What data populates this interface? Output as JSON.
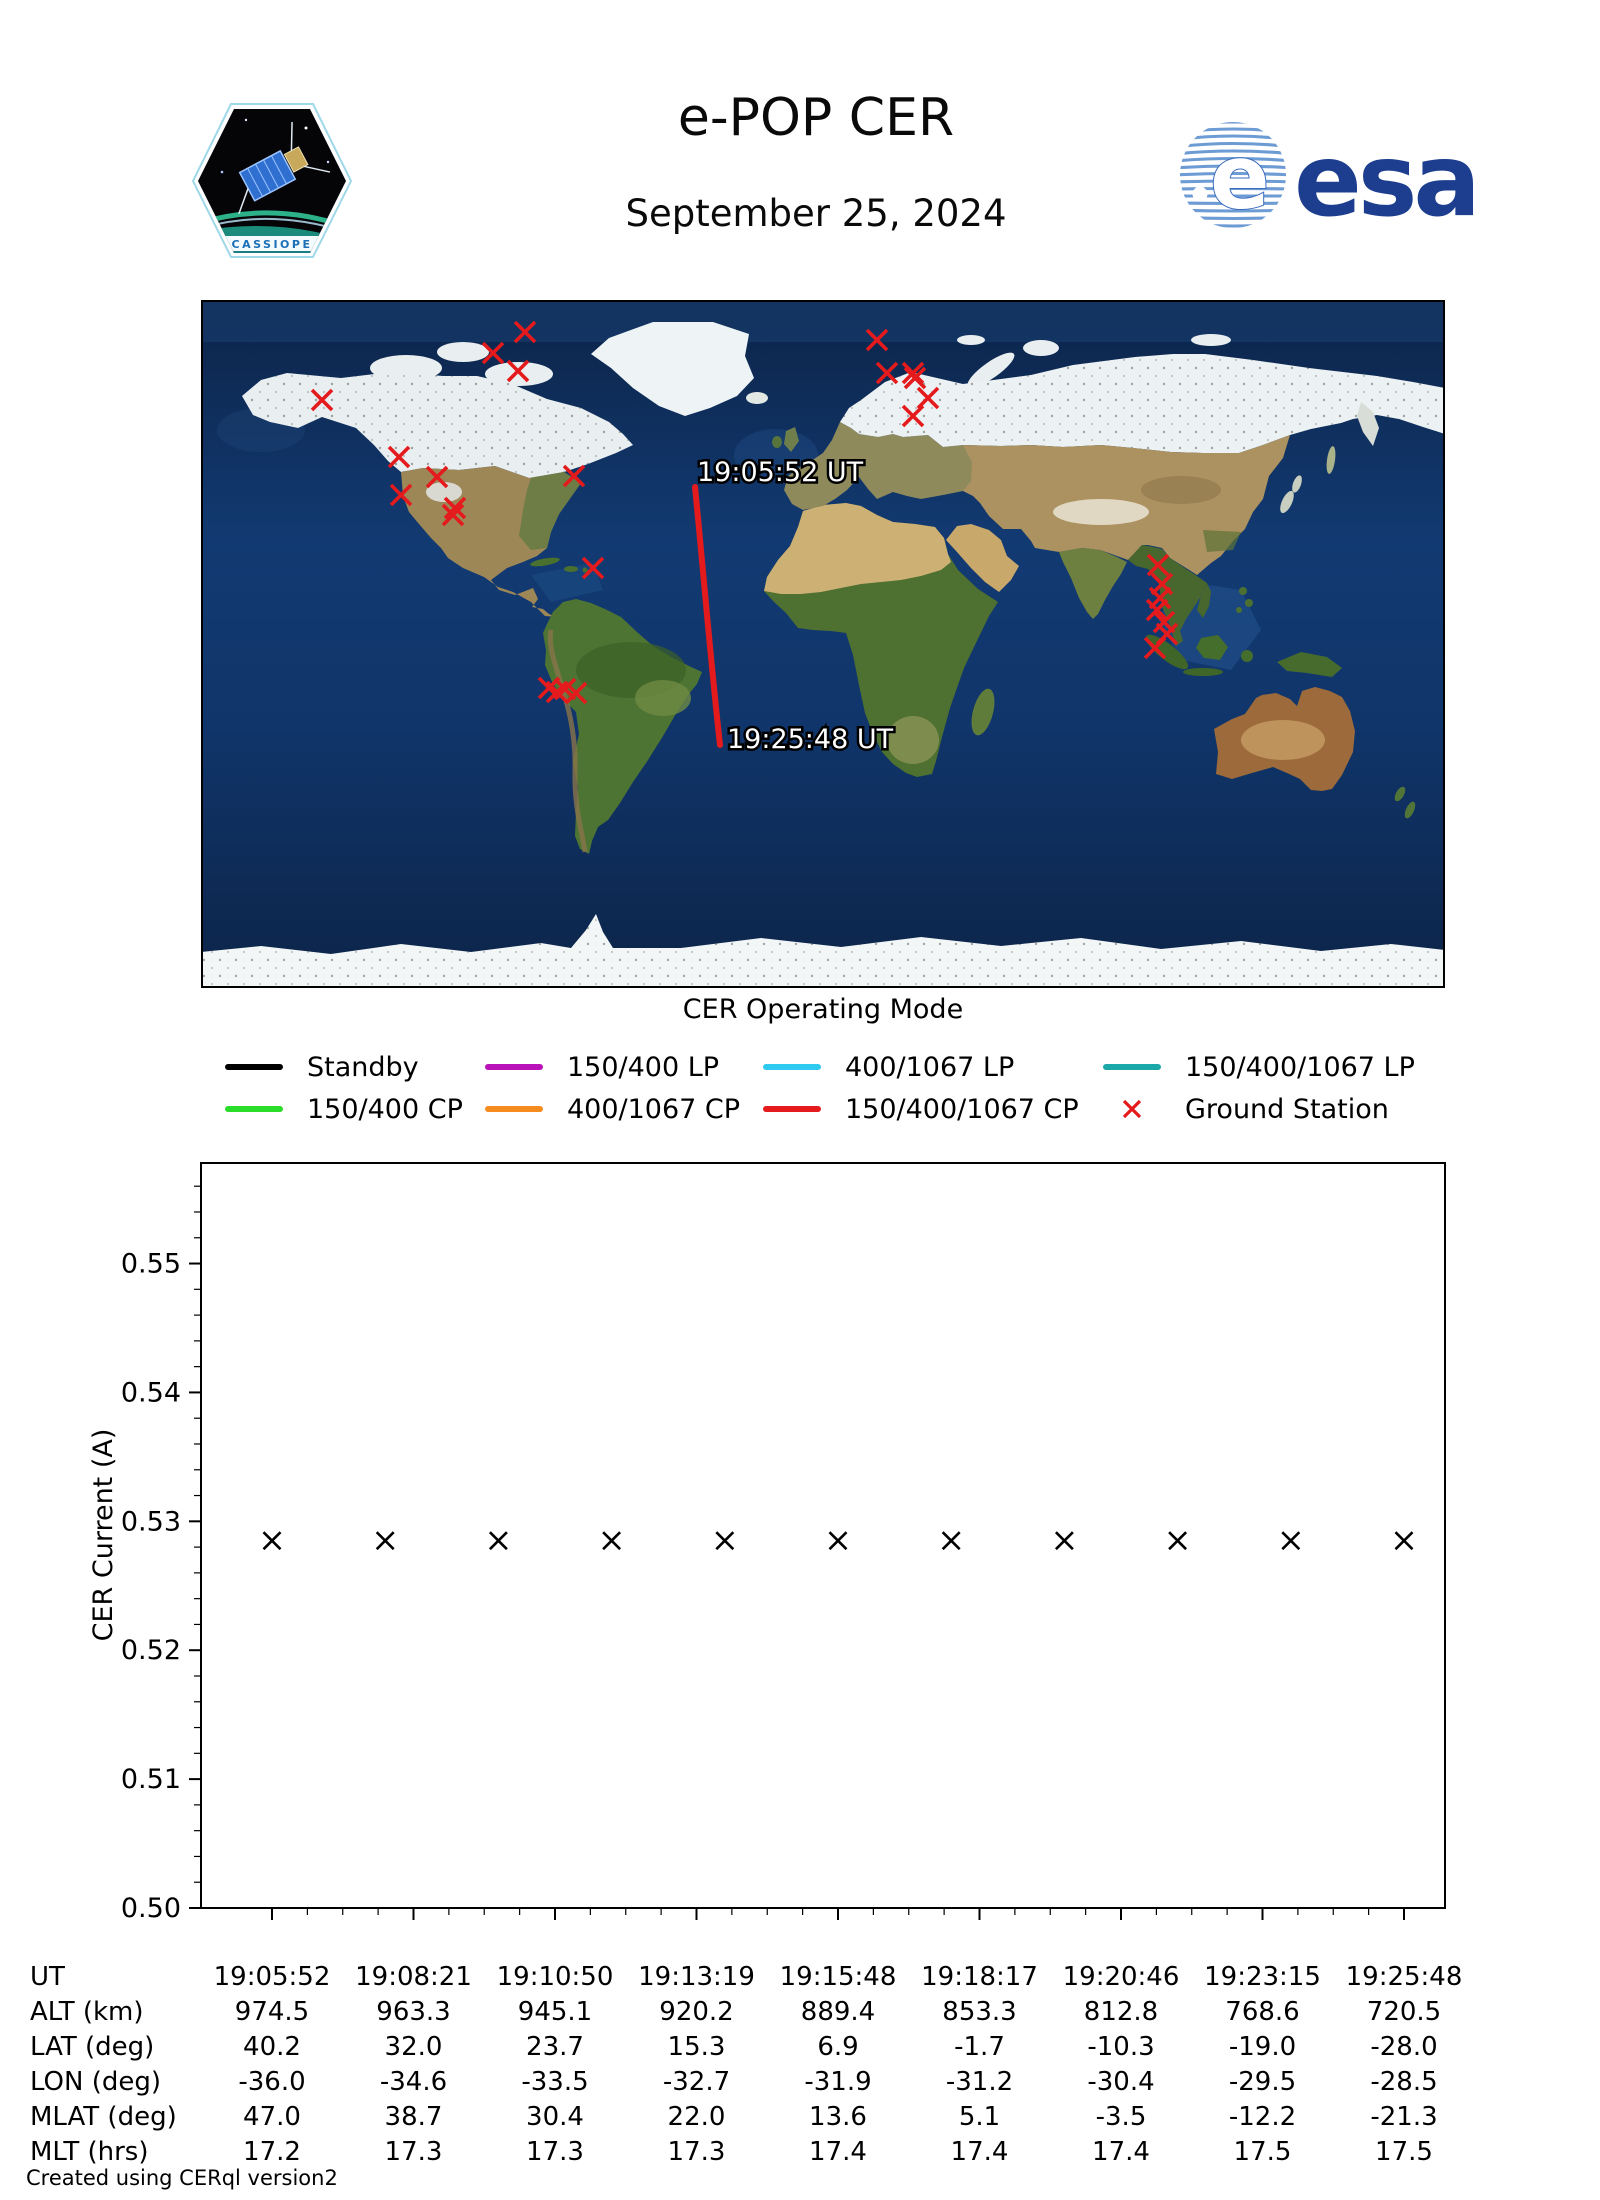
{
  "header": {
    "title": "e-POP CER",
    "subtitle": "September 25, 2024",
    "patch_text": "CASSIOPE",
    "esa_text": "esa"
  },
  "map": {
    "track": {
      "label_start": "19:05:52 UT",
      "label_end": "19:25:48 UT",
      "color": "#e41a1c",
      "start": [
        494,
        187
      ],
      "end": [
        519,
        445
      ]
    },
    "ground_station_color": "#e41a1c",
    "ground_stations": [
      [
        324,
        32
      ],
      [
        292,
        53
      ],
      [
        317,
        71
      ],
      [
        676,
        40
      ],
      [
        686,
        73
      ],
      [
        712,
        73
      ],
      [
        714,
        78
      ],
      [
        727,
        98
      ],
      [
        712,
        116
      ],
      [
        121,
        100
      ],
      [
        198,
        157
      ],
      [
        236,
        177
      ],
      [
        200,
        195
      ],
      [
        254,
        208
      ],
      [
        252,
        215
      ],
      [
        373,
        176
      ],
      [
        392,
        268
      ],
      [
        348,
        388
      ],
      [
        356,
        392
      ],
      [
        364,
        389
      ],
      [
        375,
        393
      ],
      [
        957,
        265
      ],
      [
        961,
        284
      ],
      [
        959,
        298
      ],
      [
        956,
        310
      ],
      [
        963,
        322
      ],
      [
        966,
        334
      ],
      [
        954,
        348
      ]
    ]
  },
  "legend": {
    "title": "CER Operating Mode",
    "rows": [
      [
        {
          "label": "Standby",
          "color": "#000000",
          "type": "line"
        },
        {
          "label": "150/400 LP",
          "color": "#b812b8",
          "type": "line"
        },
        {
          "label": "400/1067 LP",
          "color": "#30c9f0",
          "type": "line"
        },
        {
          "label": "150/400/1067 LP",
          "color": "#1ba8a8",
          "type": "line"
        }
      ],
      [
        {
          "label": "150/400 CP",
          "color": "#2bdd2b",
          "type": "line"
        },
        {
          "label": "400/1067 CP",
          "color": "#f68b1f",
          "type": "line"
        },
        {
          "label": "150/400/1067 CP",
          "color": "#e41a1c",
          "type": "line"
        },
        {
          "label": "Ground Station",
          "color": "#e41a1c",
          "type": "x"
        }
      ]
    ]
  },
  "chart_data": {
    "type": "scatter",
    "marker": "x",
    "marker_color": "#000000",
    "ylabel": "CER Current (A)",
    "ylim": [
      0.5,
      0.5578
    ],
    "yticks": [
      0.5,
      0.51,
      0.52,
      0.53,
      0.54,
      0.55
    ],
    "ytick_minor_step": 0.002,
    "xtick_minor_per_major": 4,
    "x_tick_labels": [
      "19:05:52",
      "19:08:21",
      "19:10:50",
      "19:13:19",
      "19:15:48",
      "19:18:17",
      "19:20:46",
      "19:23:15",
      "19:25:48"
    ],
    "series": [
      {
        "name": "CER current",
        "values": [
          0.5285,
          0.5285,
          0.5285,
          0.5285,
          0.5285,
          0.5285,
          0.5285,
          0.5285,
          0.5285,
          0.5285,
          0.5285
        ]
      }
    ],
    "grid": false,
    "legend_position": "none"
  },
  "table": {
    "rows": [
      {
        "label": "UT",
        "values": [
          "19:05:52",
          "19:08:21",
          "19:10:50",
          "19:13:19",
          "19:15:48",
          "19:18:17",
          "19:20:46",
          "19:23:15",
          "19:25:48"
        ]
      },
      {
        "label": "ALT (km)",
        "values": [
          "974.5",
          "963.3",
          "945.1",
          "920.2",
          "889.4",
          "853.3",
          "812.8",
          "768.6",
          "720.5"
        ]
      },
      {
        "label": "LAT (deg)",
        "values": [
          "40.2",
          "32.0",
          "23.7",
          "15.3",
          "6.9",
          "-1.7",
          "-10.3",
          "-19.0",
          "-28.0"
        ]
      },
      {
        "label": "LON (deg)",
        "values": [
          "-36.0",
          "-34.6",
          "-33.5",
          "-32.7",
          "-31.9",
          "-31.2",
          "-30.4",
          "-29.5",
          "-28.5"
        ]
      },
      {
        "label": "MLAT (deg)",
        "values": [
          "47.0",
          "38.7",
          "30.4",
          "22.0",
          "13.6",
          "5.1",
          "-3.5",
          "-12.2",
          "-21.3"
        ]
      },
      {
        "label": "MLT (hrs)",
        "values": [
          "17.2",
          "17.3",
          "17.3",
          "17.3",
          "17.4",
          "17.4",
          "17.4",
          "17.5",
          "17.5"
        ]
      }
    ]
  },
  "footer": {
    "credit": "Created using CERql version2"
  }
}
